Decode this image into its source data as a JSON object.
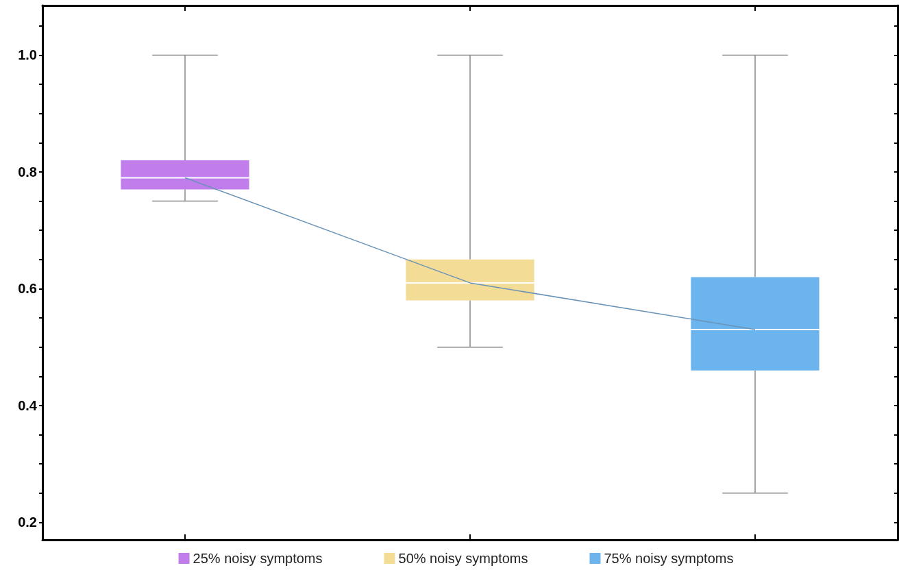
{
  "chart_data": {
    "type": "box",
    "categories": [
      null,
      null,
      null
    ],
    "ylim": [
      0.17,
      1.085
    ],
    "yticks": [
      {
        "value": 0.2,
        "label": "0.2"
      },
      {
        "value": 0.25,
        "label": null
      },
      {
        "value": 0.3,
        "label": null
      },
      {
        "value": 0.35,
        "label": null
      },
      {
        "value": 0.4,
        "label": "0.4"
      },
      {
        "value": 0.45,
        "label": null
      },
      {
        "value": 0.5,
        "label": null
      },
      {
        "value": 0.55,
        "label": null
      },
      {
        "value": 0.6,
        "label": "0.6"
      },
      {
        "value": 0.65,
        "label": null
      },
      {
        "value": 0.7,
        "label": null
      },
      {
        "value": 0.75,
        "label": null
      },
      {
        "value": 0.8,
        "label": "0.8"
      },
      {
        "value": 0.85,
        "label": null
      },
      {
        "value": 0.9,
        "label": null
      },
      {
        "value": 0.95,
        "label": null
      },
      {
        "value": 1.0,
        "label": "1.0"
      },
      {
        "value": 1.05,
        "label": null
      }
    ],
    "grid": false,
    "legend": "bottom",
    "series": [
      {
        "name": "25% noisy symptoms",
        "color": "#c27ded",
        "boxes": [
          {
            "low": 0.75,
            "q1": 0.77,
            "median": 0.79,
            "q3": 0.82,
            "high": 1.0
          },
          null,
          null
        ]
      },
      {
        "name": "50% noisy symptoms",
        "color": "#f2dc96",
        "boxes": [
          null,
          {
            "low": 0.5,
            "q1": 0.58,
            "median": 0.61,
            "q3": 0.65,
            "high": 1.0
          },
          null
        ]
      },
      {
        "name": "75% noisy symptoms",
        "color": "#6cb4ee",
        "boxes": [
          null,
          null,
          {
            "low": 0.25,
            "q1": 0.46,
            "median": 0.53,
            "q3": 0.62,
            "high": 1.0
          }
        ]
      },
      {
        "type": "line",
        "color": "#6a93b8",
        "values": [
          0.79,
          0.61,
          0.53
        ],
        "marker": "none"
      }
    ]
  }
}
